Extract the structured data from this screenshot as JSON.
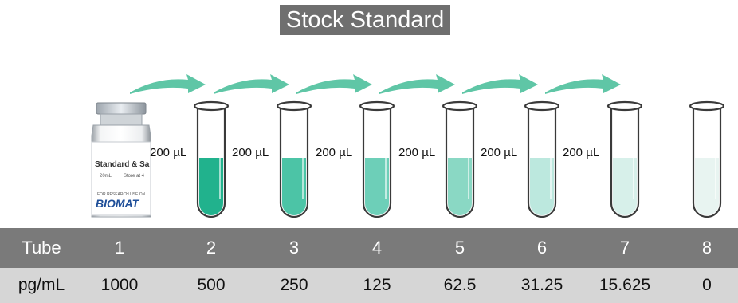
{
  "title": "Stock Standard",
  "vial": {
    "label_title": "Standard & Sa",
    "label_line1": "20mL",
    "label_line2": "Store at 4",
    "label_line3": "FOR RESEARCH USE ON",
    "brand": "BIOMAT"
  },
  "transfer_label": "200 µL",
  "table": {
    "header_label": "Tube",
    "value_label": "pg/mL",
    "tubes": [
      "1",
      "2",
      "3",
      "4",
      "5",
      "6",
      "7",
      "8"
    ],
    "concentrations": [
      "1000",
      "500",
      "250",
      "125",
      "62.5",
      "31.25",
      "15.625",
      "0"
    ]
  },
  "colors": {
    "fills": [
      "#21b28d",
      "#4cc4a6",
      "#6dcfb8",
      "#8ad8c4",
      "#bce8de",
      "#d7f0ea",
      "#e8f4f1"
    ],
    "arrow": "#5fc6a6",
    "header_bg": "#7a7a7a",
    "row_bg": "#d6d6d6"
  }
}
